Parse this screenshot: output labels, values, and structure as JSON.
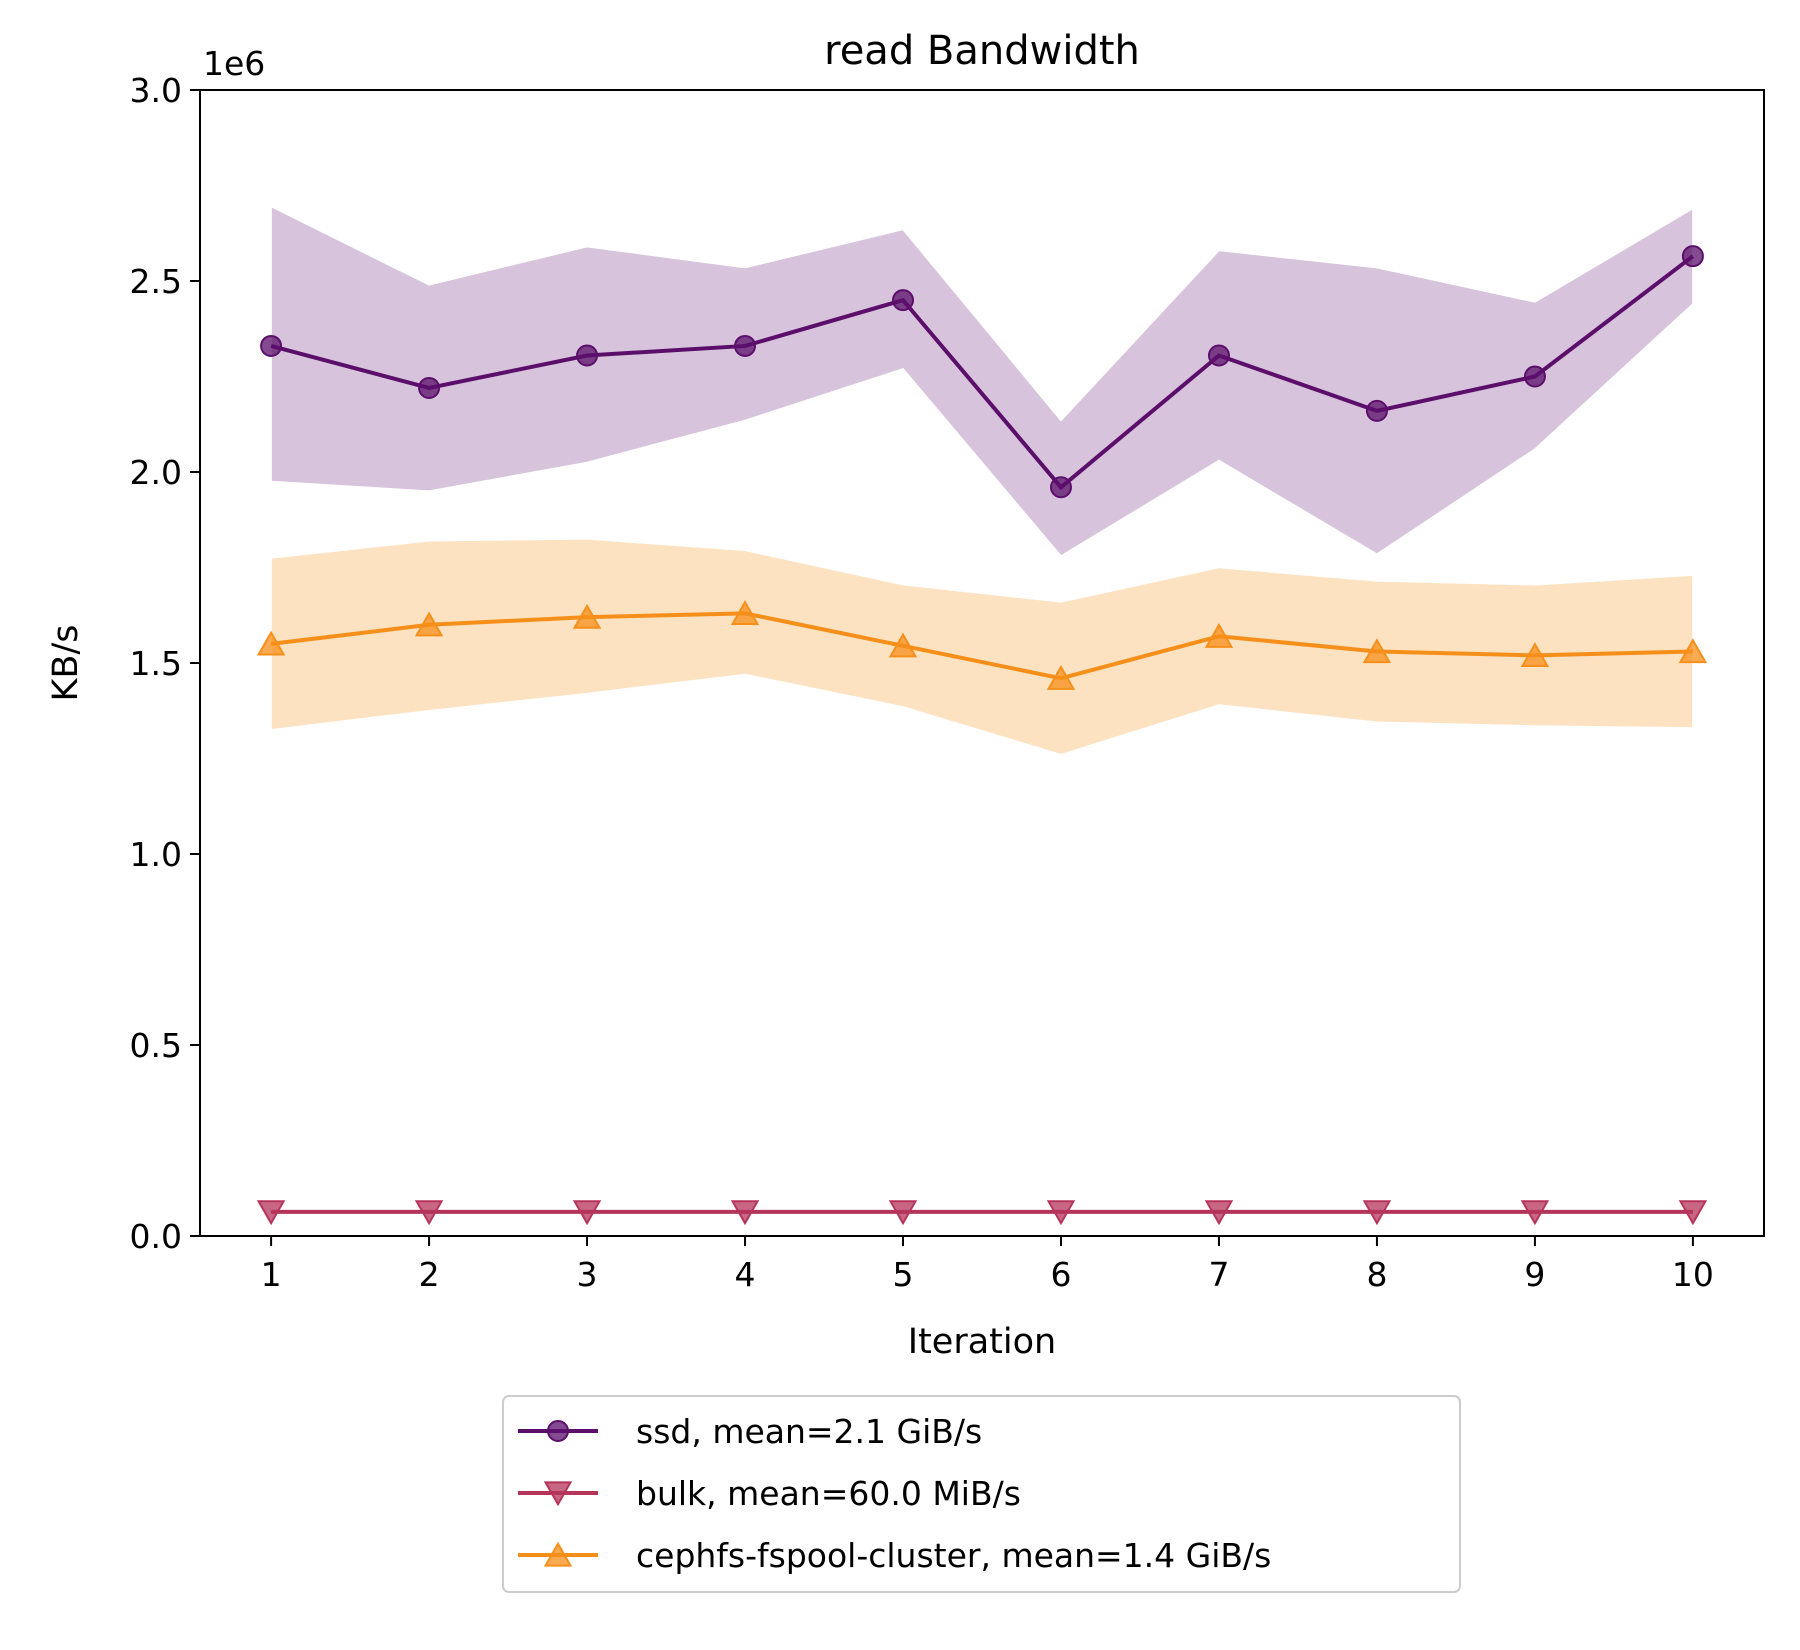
{
  "chart_data": {
    "type": "line",
    "title": "read Bandwidth",
    "xlabel": "Iteration",
    "ylabel": "KB/s",
    "y_offset_label": "1e6",
    "xlim": [
      0.55,
      10.45
    ],
    "ylim": [
      0,
      3.0
    ],
    "x": [
      1,
      2,
      3,
      4,
      5,
      6,
      7,
      8,
      9,
      10
    ],
    "x_tick_labels": [
      "1",
      "2",
      "3",
      "4",
      "5",
      "6",
      "7",
      "8",
      "9",
      "10"
    ],
    "y_ticks": [
      0.0,
      0.5,
      1.0,
      1.5,
      2.0,
      2.5,
      3.0
    ],
    "y_tick_labels": [
      "0.0",
      "0.5",
      "1.0",
      "1.5",
      "2.0",
      "2.5",
      "3.0"
    ],
    "grid": false,
    "legend_position": "bottom-center",
    "series": [
      {
        "name": "ssd, mean=2.1 GiB/s",
        "color": "#5b0f6b",
        "band_color": "#d7c3dc",
        "marker": "circle",
        "values": [
          2.33,
          2.22,
          2.305,
          2.33,
          2.45,
          1.96,
          2.305,
          2.16,
          2.25,
          2.565
        ],
        "upper": [
          2.695,
          2.49,
          2.59,
          2.535,
          2.635,
          2.135,
          2.58,
          2.535,
          2.445,
          2.69
        ],
        "lower": [
          1.975,
          1.95,
          2.025,
          2.135,
          2.27,
          1.78,
          2.03,
          1.785,
          2.06,
          2.44
        ]
      },
      {
        "name": "bulk, mean=60.0 MiB/s",
        "color": "#b5345a",
        "band_color": "#eecdd7",
        "marker": "triangle-down",
        "values": [
          0.063,
          0.063,
          0.063,
          0.063,
          0.063,
          0.063,
          0.063,
          0.063,
          0.063,
          0.063
        ],
        "upper": [
          0.064,
          0.064,
          0.064,
          0.064,
          0.064,
          0.064,
          0.064,
          0.064,
          0.064,
          0.064
        ],
        "lower": [
          0.062,
          0.062,
          0.062,
          0.062,
          0.062,
          0.062,
          0.062,
          0.062,
          0.062,
          0.062
        ]
      },
      {
        "name": "cephfs-fspool-cluster, mean=1.4 GiB/s",
        "color": "#f58f1a",
        "band_color": "#fde2c2",
        "marker": "triangle-up",
        "values": [
          1.55,
          1.6,
          1.62,
          1.63,
          1.545,
          1.46,
          1.57,
          1.53,
          1.52,
          1.53
        ],
        "upper": [
          1.775,
          1.82,
          1.825,
          1.795,
          1.705,
          1.66,
          1.75,
          1.715,
          1.705,
          1.73
        ],
        "lower": [
          1.325,
          1.375,
          1.42,
          1.47,
          1.385,
          1.26,
          1.39,
          1.345,
          1.335,
          1.33
        ]
      }
    ]
  }
}
